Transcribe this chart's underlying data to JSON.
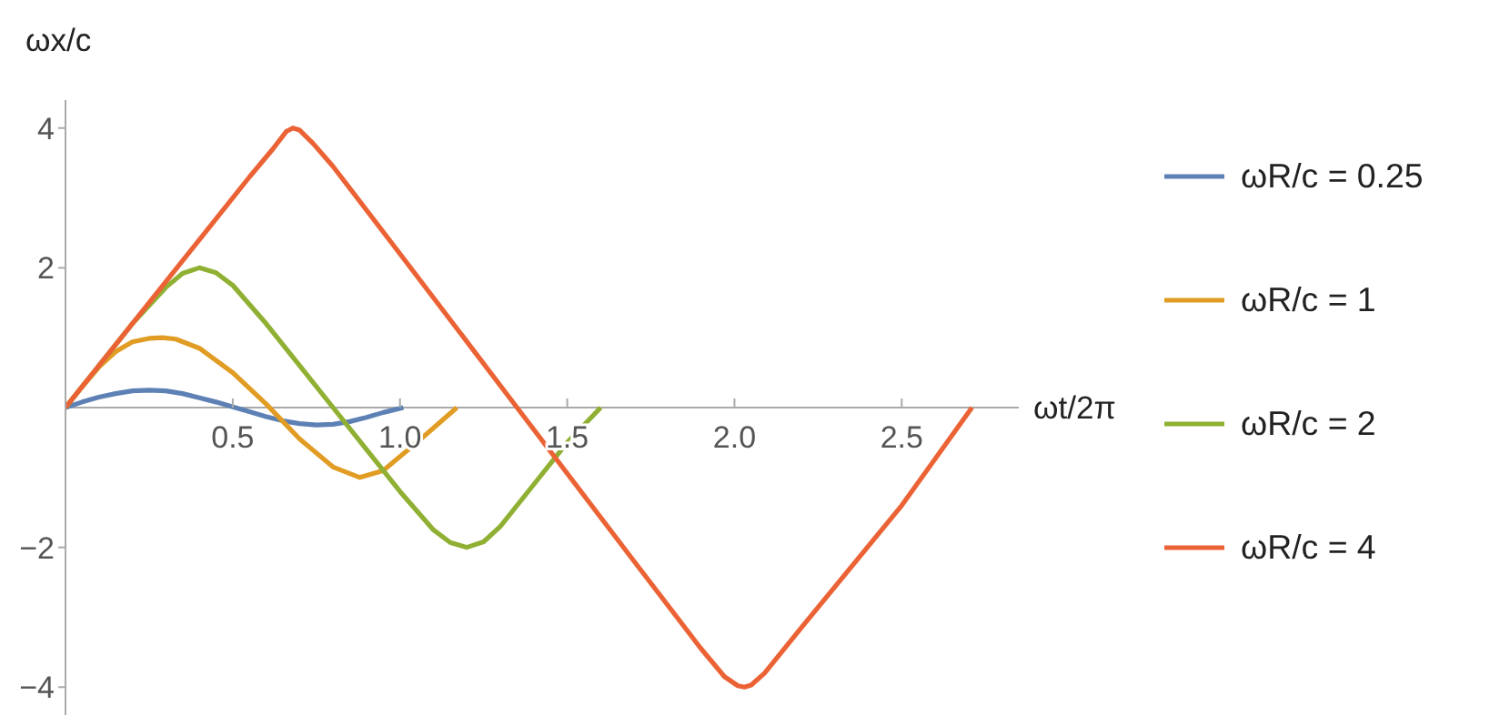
{
  "chart_data": {
    "type": "line",
    "xlabel": "ωt/2π",
    "ylabel": "ωx/c",
    "xlim": [
      0,
      2.85
    ],
    "ylim": [
      -4.4,
      4.4
    ],
    "xticks": [
      0.5,
      {
        "value": 1,
        "label": "1.0"
      },
      1.5,
      {
        "value": 2,
        "label": "2.0"
      },
      2.5
    ],
    "yticks": [
      -4,
      -2,
      2,
      4
    ],
    "grid": false,
    "legend": "right",
    "marker": "none",
    "line_style": "solid",
    "series": [
      {
        "name": "ωR/c = 0.25",
        "color": "#5e81b5",
        "x": [
          0,
          0.05,
          0.1,
          0.15,
          0.2,
          0.25,
          0.3,
          0.35,
          0.4,
          0.45,
          0.5,
          0.55,
          0.6,
          0.65,
          0.7,
          0.75,
          0.8,
          0.85,
          0.9,
          0.95,
          1.01
        ],
        "values": [
          0,
          0.08,
          0.15,
          0.2,
          0.24,
          0.25,
          0.24,
          0.2,
          0.14,
          0.08,
          0.01,
          -0.06,
          -0.13,
          -0.19,
          -0.23,
          -0.25,
          -0.24,
          -0.2,
          -0.14,
          -0.07,
          0
        ]
      },
      {
        "name": "ωR/c = 1",
        "color": "#e19c24",
        "x": [
          0,
          0.05,
          0.1,
          0.15,
          0.2,
          0.25,
          0.29,
          0.33,
          0.4,
          0.5,
          0.6,
          0.7,
          0.8,
          0.88,
          0.95,
          1.05,
          1.17
        ],
        "values": [
          0,
          0.3,
          0.58,
          0.8,
          0.94,
          0.99,
          1.0,
          0.98,
          0.85,
          0.5,
          0.05,
          -0.45,
          -0.85,
          -1.0,
          -0.9,
          -0.5,
          0
        ]
      },
      {
        "name": "ωR/c = 2",
        "color": "#8fb032",
        "x": [
          0,
          0.1,
          0.2,
          0.3,
          0.35,
          0.4,
          0.45,
          0.5,
          0.6,
          0.7,
          0.8,
          0.9,
          1.0,
          1.1,
          1.15,
          1.2,
          1.25,
          1.3,
          1.4,
          1.5,
          1.6
        ],
        "values": [
          0,
          0.6,
          1.2,
          1.72,
          1.92,
          2.0,
          1.93,
          1.75,
          1.2,
          0.6,
          0,
          -0.6,
          -1.2,
          -1.75,
          -1.93,
          -2.0,
          -1.92,
          -1.7,
          -1.1,
          -0.5,
          0
        ]
      },
      {
        "name": "ωR/c = 4",
        "color": "#eb6235",
        "x": [
          0,
          0.3,
          0.55,
          0.62,
          0.66,
          0.68,
          0.7,
          0.74,
          0.8,
          1.0,
          1.35,
          1.7,
          1.9,
          1.97,
          2.01,
          2.03,
          2.05,
          2.09,
          2.2,
          2.5,
          2.71
        ],
        "values": [
          0,
          1.8,
          3.3,
          3.7,
          3.95,
          4.0,
          3.97,
          3.78,
          3.45,
          2.2,
          0,
          -2.2,
          -3.45,
          -3.85,
          -3.98,
          -4.0,
          -3.97,
          -3.8,
          -3.15,
          -1.4,
          0
        ]
      }
    ]
  }
}
